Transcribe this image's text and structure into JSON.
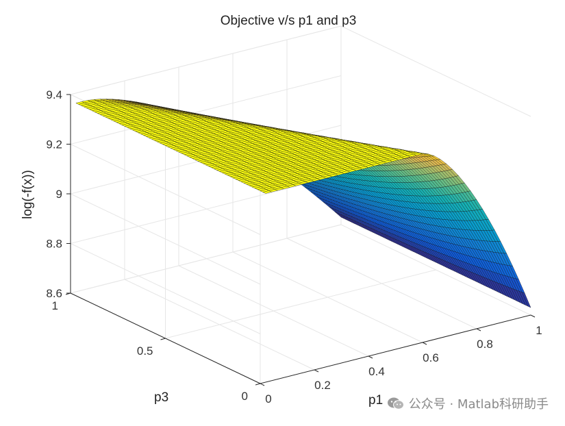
{
  "chart_data": {
    "type": "surface",
    "title": "Objective v/s p1 and p3",
    "xlabel": "p1",
    "ylabel": "p3",
    "zlabel": "log(-f(x))",
    "xlim": [
      0,
      1
    ],
    "ylim": [
      0,
      1
    ],
    "zlim": [
      8.6,
      9.4
    ],
    "xticks": [
      0,
      0.2,
      0.4,
      0.6,
      0.8,
      1
    ],
    "xtick_labels": [
      "0",
      "0.2",
      "0.4",
      "0.6",
      "0.8",
      "1"
    ],
    "yticks": [
      0,
      0.5,
      1
    ],
    "ytick_labels": [
      "0",
      "0.5",
      "1"
    ],
    "zticks": [
      8.6,
      8.8,
      9.0,
      9.2,
      9.4
    ],
    "ztick_labels": [
      "8.6",
      "8.8",
      "9",
      "9.2",
      "9.4"
    ],
    "grid": true,
    "colormap": "parula",
    "surface": {
      "p1_range": [
        0.02,
        1.0
      ],
      "p3_range": [
        0.0,
        1.0
      ],
      "plateau_value": 9.36,
      "min_value": 8.63,
      "plateau_edge_p1": [
        {
          "p3": 0.0,
          "p1": 0.6
        },
        {
          "p3": 1.0,
          "p1": 0.05
        }
      ]
    }
  },
  "watermark": {
    "text": "公众号 · Matlab科研助手",
    "icon": "wechat-icon"
  }
}
